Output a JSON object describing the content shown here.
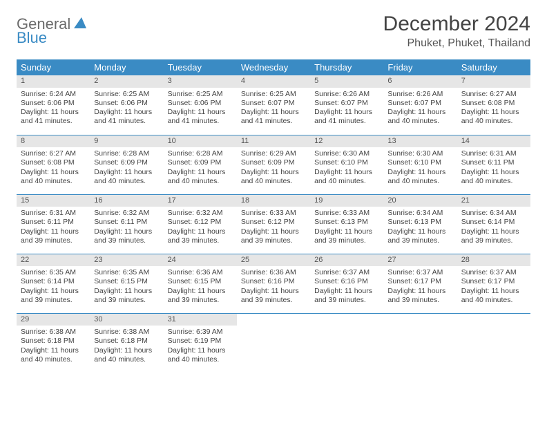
{
  "logo": {
    "text1": "General",
    "text2": "Blue"
  },
  "title": "December 2024",
  "location": "Phuket, Phuket, Thailand",
  "colors": {
    "header_bg": "#3a8bc4",
    "header_text": "#ffffff",
    "daynum_bg": "#e6e6e6",
    "rule": "#3a8bc4",
    "body_text": "#444444",
    "logo_gray": "#6b6b6b",
    "logo_blue": "#3a8bc4"
  },
  "weekdays": [
    "Sunday",
    "Monday",
    "Tuesday",
    "Wednesday",
    "Thursday",
    "Friday",
    "Saturday"
  ],
  "days": [
    {
      "n": 1,
      "sr": "6:24 AM",
      "ss": "6:06 PM",
      "dl": "11 hours and 41 minutes."
    },
    {
      "n": 2,
      "sr": "6:25 AM",
      "ss": "6:06 PM",
      "dl": "11 hours and 41 minutes."
    },
    {
      "n": 3,
      "sr": "6:25 AM",
      "ss": "6:06 PM",
      "dl": "11 hours and 41 minutes."
    },
    {
      "n": 4,
      "sr": "6:25 AM",
      "ss": "6:07 PM",
      "dl": "11 hours and 41 minutes."
    },
    {
      "n": 5,
      "sr": "6:26 AM",
      "ss": "6:07 PM",
      "dl": "11 hours and 41 minutes."
    },
    {
      "n": 6,
      "sr": "6:26 AM",
      "ss": "6:07 PM",
      "dl": "11 hours and 40 minutes."
    },
    {
      "n": 7,
      "sr": "6:27 AM",
      "ss": "6:08 PM",
      "dl": "11 hours and 40 minutes."
    },
    {
      "n": 8,
      "sr": "6:27 AM",
      "ss": "6:08 PM",
      "dl": "11 hours and 40 minutes."
    },
    {
      "n": 9,
      "sr": "6:28 AM",
      "ss": "6:09 PM",
      "dl": "11 hours and 40 minutes."
    },
    {
      "n": 10,
      "sr": "6:28 AM",
      "ss": "6:09 PM",
      "dl": "11 hours and 40 minutes."
    },
    {
      "n": 11,
      "sr": "6:29 AM",
      "ss": "6:09 PM",
      "dl": "11 hours and 40 minutes."
    },
    {
      "n": 12,
      "sr": "6:30 AM",
      "ss": "6:10 PM",
      "dl": "11 hours and 40 minutes."
    },
    {
      "n": 13,
      "sr": "6:30 AM",
      "ss": "6:10 PM",
      "dl": "11 hours and 40 minutes."
    },
    {
      "n": 14,
      "sr": "6:31 AM",
      "ss": "6:11 PM",
      "dl": "11 hours and 40 minutes."
    },
    {
      "n": 15,
      "sr": "6:31 AM",
      "ss": "6:11 PM",
      "dl": "11 hours and 39 minutes."
    },
    {
      "n": 16,
      "sr": "6:32 AM",
      "ss": "6:11 PM",
      "dl": "11 hours and 39 minutes."
    },
    {
      "n": 17,
      "sr": "6:32 AM",
      "ss": "6:12 PM",
      "dl": "11 hours and 39 minutes."
    },
    {
      "n": 18,
      "sr": "6:33 AM",
      "ss": "6:12 PM",
      "dl": "11 hours and 39 minutes."
    },
    {
      "n": 19,
      "sr": "6:33 AM",
      "ss": "6:13 PM",
      "dl": "11 hours and 39 minutes."
    },
    {
      "n": 20,
      "sr": "6:34 AM",
      "ss": "6:13 PM",
      "dl": "11 hours and 39 minutes."
    },
    {
      "n": 21,
      "sr": "6:34 AM",
      "ss": "6:14 PM",
      "dl": "11 hours and 39 minutes."
    },
    {
      "n": 22,
      "sr": "6:35 AM",
      "ss": "6:14 PM",
      "dl": "11 hours and 39 minutes."
    },
    {
      "n": 23,
      "sr": "6:35 AM",
      "ss": "6:15 PM",
      "dl": "11 hours and 39 minutes."
    },
    {
      "n": 24,
      "sr": "6:36 AM",
      "ss": "6:15 PM",
      "dl": "11 hours and 39 minutes."
    },
    {
      "n": 25,
      "sr": "6:36 AM",
      "ss": "6:16 PM",
      "dl": "11 hours and 39 minutes."
    },
    {
      "n": 26,
      "sr": "6:37 AM",
      "ss": "6:16 PM",
      "dl": "11 hours and 39 minutes."
    },
    {
      "n": 27,
      "sr": "6:37 AM",
      "ss": "6:17 PM",
      "dl": "11 hours and 39 minutes."
    },
    {
      "n": 28,
      "sr": "6:37 AM",
      "ss": "6:17 PM",
      "dl": "11 hours and 40 minutes."
    },
    {
      "n": 29,
      "sr": "6:38 AM",
      "ss": "6:18 PM",
      "dl": "11 hours and 40 minutes."
    },
    {
      "n": 30,
      "sr": "6:38 AM",
      "ss": "6:18 PM",
      "dl": "11 hours and 40 minutes."
    },
    {
      "n": 31,
      "sr": "6:39 AM",
      "ss": "6:19 PM",
      "dl": "11 hours and 40 minutes."
    }
  ],
  "labels": {
    "sunrise": "Sunrise:",
    "sunset": "Sunset:",
    "daylight": "Daylight:"
  }
}
